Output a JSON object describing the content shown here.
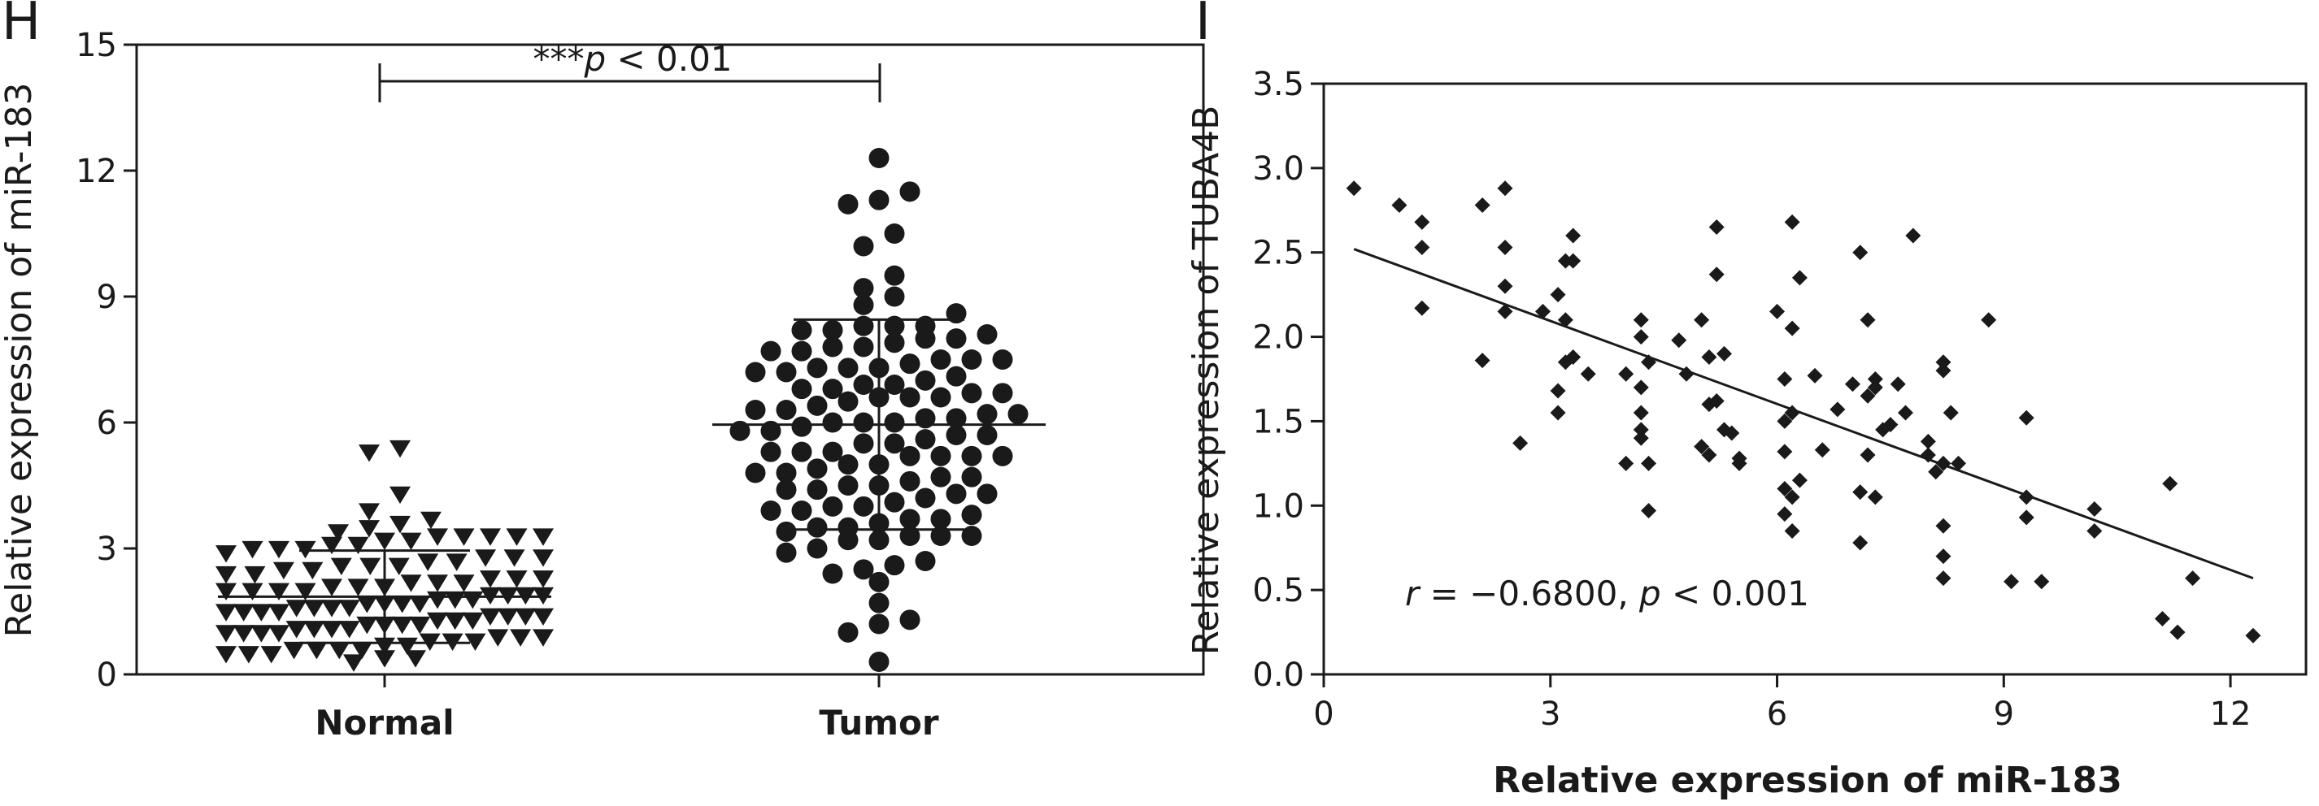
{
  "panels": [
    {
      "letter": "H"
    },
    {
      "letter": "I"
    }
  ],
  "chart_data": [
    {
      "type": "scatter",
      "subtype": "dot-plot",
      "categories": [
        "Normal",
        "Tumor"
      ],
      "ylabel": "Relative expression of miR-183",
      "ylim": [
        0,
        15
      ],
      "yticks": [
        0,
        3,
        6,
        9,
        12,
        15
      ],
      "annotation": {
        "stars": "***",
        "p": "p",
        "text": " < 0.01"
      },
      "series": [
        {
          "category": "Normal",
          "marker": "triangle-down",
          "mean": 1.85,
          "sd": 1.1,
          "values": [
            0.5,
            0.6,
            0.7,
            0.8,
            0.9,
            1.0,
            1.0,
            1.1,
            1.1,
            1.2,
            1.2,
            1.3,
            1.3,
            1.4,
            1.4,
            1.5,
            1.5,
            1.6,
            1.6,
            1.7,
            1.7,
            1.8,
            1.8,
            1.9,
            1.9,
            2.0,
            2.0,
            2.1,
            2.1,
            2.2,
            2.3,
            2.4,
            2.5,
            2.6,
            2.7,
            2.8,
            3.0,
            3.1,
            3.2,
            3.4,
            3.6,
            3.9,
            4.3,
            5.3,
            5.4,
            0.4,
            0.3,
            0.5,
            0.6,
            0.8,
            0.9,
            1.2,
            1.3,
            1.5,
            1.6,
            1.8,
            2.0,
            2.2,
            2.4,
            2.6,
            2.9,
            3.2,
            3.5,
            3.7,
            0.7,
            0.9,
            1.1,
            1.4,
            1.7,
            2.0,
            2.3,
            2.7,
            3.0,
            3.3,
            3.3,
            0.6,
            1.0,
            1.5,
            1.9,
            2.3,
            2.8,
            3.3,
            0.4,
            0.8,
            1.2,
            1.6,
            2.1,
            2.6,
            3.1,
            3.3,
            0.5,
            1.0,
            1.4,
            1.9,
            2.5,
            3.0,
            3.3,
            0.6,
            1.1,
            1.7,
            2.2,
            2.8
          ]
        },
        {
          "category": "Tumor",
          "marker": "circle",
          "mean": 5.95,
          "sd": 2.5,
          "values": [
            0.3,
            1.0,
            1.2,
            1.3,
            1.7,
            2.2,
            2.4,
            2.5,
            2.7,
            3.0,
            3.2,
            3.3,
            3.5,
            3.7,
            3.9,
            4.2,
            4.3,
            4.5,
            4.7,
            4.9,
            5.0,
            5.2,
            5.3,
            5.5,
            5.6,
            5.8,
            5.9,
            6.0,
            6.1,
            6.2,
            6.3,
            6.5,
            6.6,
            6.7,
            6.9,
            7.0,
            7.2,
            7.3,
            7.5,
            7.7,
            7.8,
            8.0,
            8.2,
            8.3,
            8.6,
            8.8,
            9.0,
            9.2,
            9.5,
            10.2,
            10.5,
            11.2,
            11.3,
            11.5,
            12.3,
            3.3,
            3.6,
            4.0,
            4.4,
            4.8,
            5.3,
            5.7,
            6.2,
            6.6,
            7.1,
            7.5,
            7.9,
            8.3,
            3.4,
            3.8,
            4.3,
            4.8,
            5.2,
            5.7,
            6.3,
            6.8,
            7.3,
            7.8,
            8.3,
            3.3,
            3.9,
            4.4,
            5.0,
            5.5,
            6.1,
            6.6,
            7.2,
            7.7,
            8.2,
            3.5,
            4.1,
            4.7,
            5.2,
            5.8,
            6.4,
            6.9,
            7.5,
            8.1,
            2.6,
            3.2,
            4.0,
            4.6,
            5.3,
            6.0,
            6.8,
            7.4,
            8.0,
            2.9,
            3.7,
            4.5,
            5.2,
            6.0,
            6.7,
            7.3
          ]
        }
      ]
    },
    {
      "type": "scatter",
      "xlabel": "Relative expression of miR-183",
      "ylabel": "Relative expression of TUBA4B",
      "xlim": [
        0,
        13
      ],
      "ylim": [
        0,
        3.5
      ],
      "xticks": [
        0,
        3,
        6,
        9,
        12
      ],
      "yticks": [
        0,
        0.5,
        1.0,
        1.5,
        2.0,
        2.5,
        3.0,
        3.5
      ],
      "annotation": {
        "r": "r",
        "r_text": " = −0.6800, ",
        "p": "p",
        "p_text": " < 0.001"
      },
      "regression": {
        "x": [
          0.4,
          12.3
        ],
        "y": [
          2.52,
          0.57
        ]
      },
      "points": [
        [
          0.4,
          2.88
        ],
        [
          1.0,
          2.78
        ],
        [
          1.3,
          2.68
        ],
        [
          1.3,
          2.53
        ],
        [
          1.3,
          2.17
        ],
        [
          2.1,
          1.86
        ],
        [
          2.1,
          2.78
        ],
        [
          2.4,
          2.88
        ],
        [
          2.4,
          2.53
        ],
        [
          2.4,
          2.3
        ],
        [
          2.4,
          2.15
        ],
        [
          2.6,
          1.37
        ],
        [
          2.9,
          2.15
        ],
        [
          3.1,
          2.25
        ],
        [
          3.2,
          2.45
        ],
        [
          3.2,
          1.85
        ],
        [
          3.2,
          2.1
        ],
        [
          3.3,
          2.6
        ],
        [
          3.3,
          2.45
        ],
        [
          3.3,
          1.88
        ],
        [
          3.1,
          1.55
        ],
        [
          3.1,
          1.68
        ],
        [
          3.5,
          1.78
        ],
        [
          4.0,
          1.78
        ],
        [
          4.2,
          2.1
        ],
        [
          4.2,
          2.0
        ],
        [
          4.3,
          1.85
        ],
        [
          4.2,
          1.7
        ],
        [
          4.2,
          1.55
        ],
        [
          4.2,
          1.45
        ],
        [
          4.2,
          1.4
        ],
        [
          4.0,
          1.25
        ],
        [
          4.3,
          1.25
        ],
        [
          4.3,
          0.97
        ],
        [
          4.7,
          1.98
        ],
        [
          4.8,
          1.78
        ],
        [
          5.0,
          2.1
        ],
        [
          5.1,
          1.88
        ],
        [
          5.1,
          1.6
        ],
        [
          5.0,
          1.35
        ],
        [
          5.1,
          1.3
        ],
        [
          5.2,
          2.65
        ],
        [
          5.2,
          2.37
        ],
        [
          5.2,
          1.62
        ],
        [
          5.3,
          1.9
        ],
        [
          5.3,
          1.45
        ],
        [
          5.4,
          1.43
        ],
        [
          5.5,
          1.28
        ],
        [
          5.5,
          1.25
        ],
        [
          6.0,
          2.15
        ],
        [
          6.1,
          1.75
        ],
        [
          6.1,
          1.5
        ],
        [
          6.1,
          1.32
        ],
        [
          6.1,
          1.1
        ],
        [
          6.2,
          2.05
        ],
        [
          6.2,
          2.68
        ],
        [
          6.2,
          1.55
        ],
        [
          6.2,
          1.05
        ],
        [
          6.3,
          1.15
        ],
        [
          6.1,
          0.95
        ],
        [
          6.2,
          0.85
        ],
        [
          6.3,
          2.35
        ],
        [
          6.5,
          1.77
        ],
        [
          6.6,
          1.33
        ],
        [
          6.8,
          1.57
        ],
        [
          7.0,
          1.72
        ],
        [
          7.1,
          2.5
        ],
        [
          7.1,
          1.08
        ],
        [
          7.1,
          0.78
        ],
        [
          7.2,
          2.1
        ],
        [
          7.2,
          1.65
        ],
        [
          7.2,
          1.3
        ],
        [
          7.3,
          1.75
        ],
        [
          7.3,
          1.7
        ],
        [
          7.3,
          1.05
        ],
        [
          7.4,
          1.45
        ],
        [
          7.5,
          1.48
        ],
        [
          7.6,
          1.72
        ],
        [
          7.7,
          1.55
        ],
        [
          7.8,
          2.6
        ],
        [
          8.0,
          1.38
        ],
        [
          8.0,
          1.3
        ],
        [
          8.1,
          1.2
        ],
        [
          8.2,
          1.85
        ],
        [
          8.2,
          1.8
        ],
        [
          8.2,
          1.25
        ],
        [
          8.2,
          0.88
        ],
        [
          8.2,
          0.7
        ],
        [
          8.3,
          1.55
        ],
        [
          8.2,
          0.57
        ],
        [
          8.4,
          1.25
        ],
        [
          8.8,
          2.1
        ],
        [
          9.1,
          0.55
        ],
        [
          9.3,
          1.52
        ],
        [
          9.3,
          1.05
        ],
        [
          9.3,
          0.93
        ],
        [
          9.5,
          0.55
        ],
        [
          10.2,
          0.98
        ],
        [
          10.2,
          0.85
        ],
        [
          11.1,
          0.33
        ],
        [
          11.2,
          1.13
        ],
        [
          11.3,
          0.25
        ],
        [
          11.5,
          0.57
        ],
        [
          12.3,
          0.23
        ]
      ]
    }
  ]
}
